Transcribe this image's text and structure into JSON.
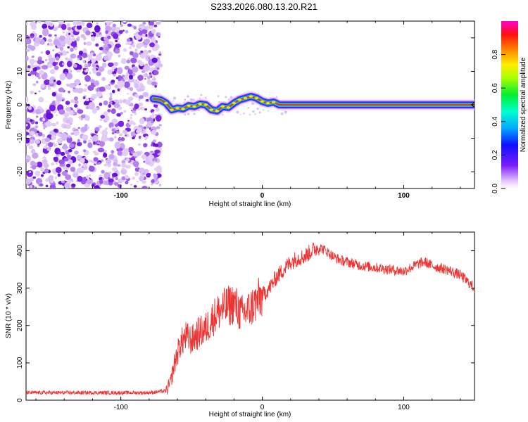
{
  "title": "S233.2026.080.13.20.R21",
  "chart_data": [
    {
      "type": "heatmap",
      "xlabel": "Height of straight line (km)",
      "ylabel": "Frequency (Hz)",
      "xlim": [
        -167,
        150
      ],
      "ylim": [
        -25,
        25
      ],
      "x_ticks": [
        -100,
        0,
        100
      ],
      "y_ticks": [
        -20,
        -10,
        0,
        10,
        20
      ],
      "colorbar": {
        "label": "Normalized spectral amplitude",
        "range": [
          0,
          1
        ],
        "ticks": [
          "0.0",
          "0.2",
          "0.4",
          "0.6",
          "0.8"
        ],
        "tick_values": [
          0.0,
          0.2,
          0.4,
          0.6,
          0.8
        ]
      },
      "noise_region_x": [
        -167,
        -72
      ],
      "signal_track": {
        "x": [
          -77,
          -72,
          -68,
          -64,
          -60,
          -56,
          -52,
          -48,
          -44,
          -40,
          -36,
          -32,
          -28,
          -24,
          -20,
          -16,
          -12,
          -8,
          -4,
          0,
          4,
          8,
          12,
          150
        ],
        "frequency": [
          1.8,
          1.5,
          0.5,
          -1.5,
          -1.0,
          -1.2,
          -0.3,
          -0.5,
          0.2,
          0.0,
          -1.5,
          -1.8,
          -0.5,
          -0.8,
          0.5,
          1.5,
          2.0,
          2.5,
          2.0,
          1.0,
          0.5,
          0.8,
          0.0,
          0.0
        ]
      }
    },
    {
      "type": "line",
      "xlabel": "Height of straight line (km)",
      "ylabel": "SNR (10 * v/v)",
      "xlim": [
        -167,
        150
      ],
      "ylim": [
        0,
        450
      ],
      "x_ticks": [
        -100,
        0,
        100
      ],
      "y_ticks": [
        0,
        100,
        200,
        300,
        400
      ],
      "color": "#ee3333",
      "series": [
        {
          "name": "SNR",
          "x": [
            -167,
            -140,
            -110,
            -80,
            -68,
            -65,
            -62,
            -58,
            -54,
            -50,
            -45,
            -40,
            -35,
            -30,
            -25,
            -20,
            -15,
            -10,
            -5,
            0,
            5,
            10,
            15,
            20,
            25,
            30,
            35,
            40,
            45,
            50,
            55,
            60,
            70,
            80,
            90,
            100,
            110,
            115,
            120,
            130,
            140,
            150
          ],
          "y": [
            20,
            20,
            20,
            20,
            25,
            45,
            100,
            150,
            170,
            160,
            180,
            190,
            220,
            240,
            250,
            260,
            230,
            240,
            260,
            280,
            300,
            330,
            350,
            370,
            380,
            385,
            400,
            410,
            400,
            385,
            375,
            370,
            360,
            355,
            350,
            345,
            365,
            370,
            360,
            350,
            335,
            300
          ]
        }
      ]
    }
  ]
}
